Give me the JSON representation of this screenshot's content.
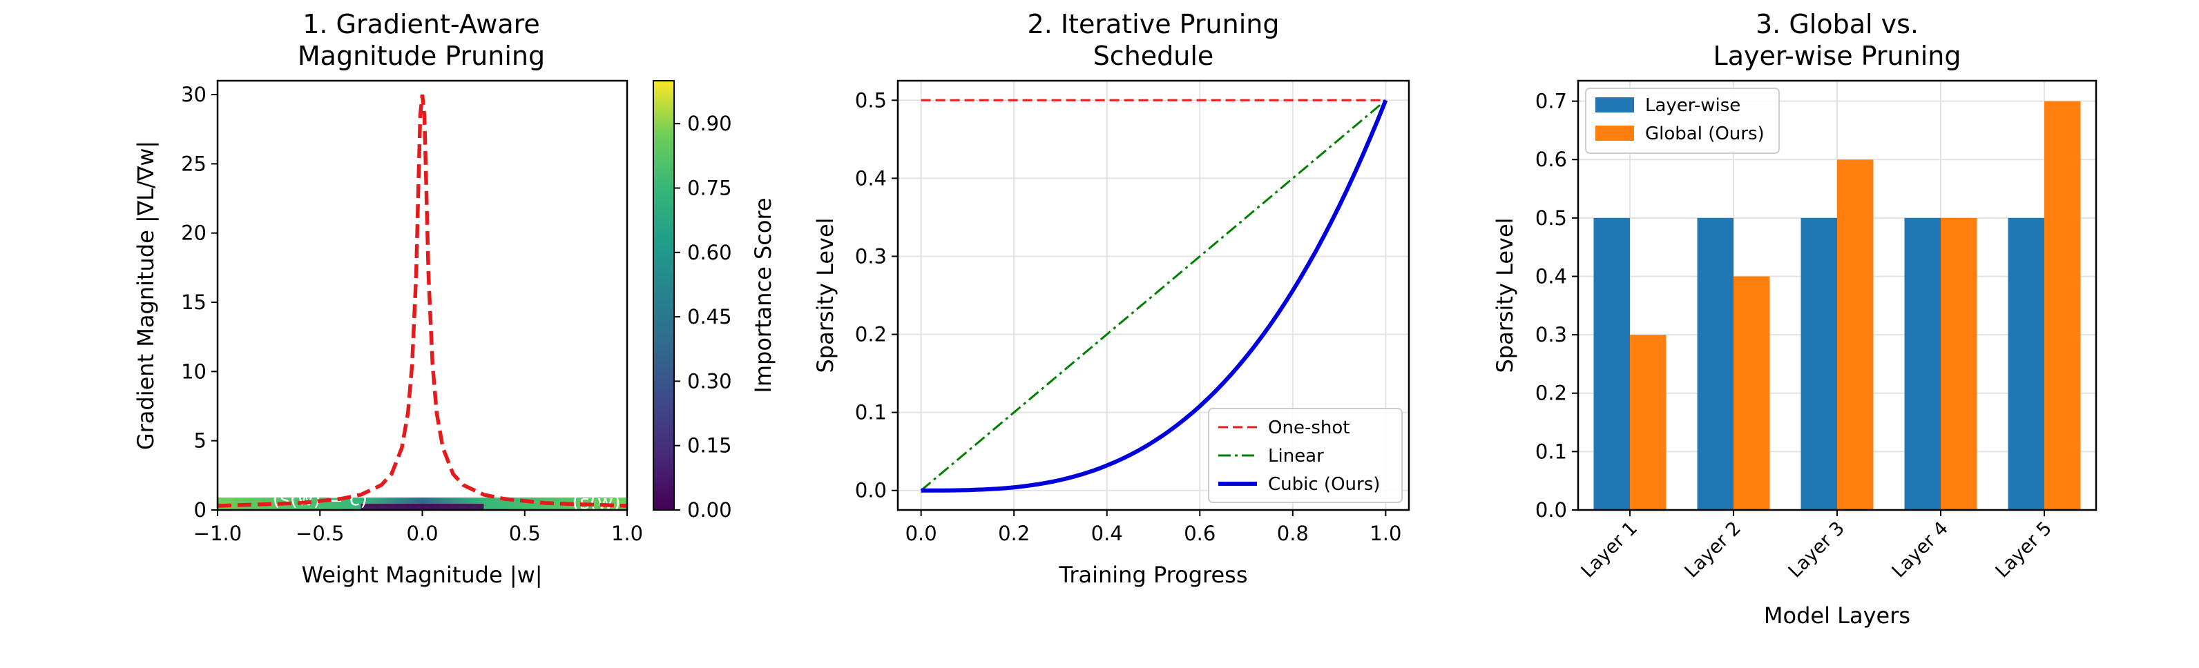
{
  "chart_data": [
    {
      "type": "line",
      "title": "1. Gradient-Aware\nMagnitude Pruning",
      "xlabel": "Weight Magnitude |w|",
      "ylabel": "Gradient Magnitude |∇L/∇w|",
      "xlim": [
        -1.0,
        1.0
      ],
      "ylim": [
        0,
        31
      ],
      "x_ticks": [
        "−1.0",
        "−0.5",
        "0.0",
        "0.5",
        "1.0"
      ],
      "y_ticks": [
        "0",
        "5",
        "10",
        "15",
        "20",
        "25",
        "30"
      ],
      "series": [
        {
          "style": "dashed",
          "color": "#e41a1c",
          "x": [
            -1.0,
            -0.8,
            -0.6,
            -0.4,
            -0.3,
            -0.2,
            -0.15,
            -0.1,
            -0.07,
            -0.05,
            -0.03,
            -0.02,
            -0.01,
            0.0,
            0.01,
            0.02,
            0.03,
            0.05,
            0.07,
            0.1,
            0.15,
            0.2,
            0.3,
            0.4,
            0.6,
            0.8,
            1.0
          ],
          "y": [
            0.3,
            0.4,
            0.5,
            0.8,
            1.1,
            1.8,
            2.6,
            4.5,
            7.0,
            10.5,
            17.0,
            23.0,
            28.5,
            30.0,
            28.5,
            23.0,
            17.0,
            10.5,
            7.0,
            4.5,
            2.6,
            1.8,
            1.1,
            0.8,
            0.5,
            0.4,
            0.3
          ]
        }
      ],
      "contour_labels": [
        "(s(w) = c)",
        "(s(w)"
      ],
      "colorbar": {
        "label": "Importance Score",
        "colormap": "viridis",
        "range": [
          0.0,
          1.0
        ],
        "ticks": [
          "0.00",
          "0.15",
          "0.30",
          "0.45",
          "0.60",
          "0.75",
          "0.90"
        ]
      }
    },
    {
      "type": "line",
      "title": "2. Iterative Pruning\nSchedule",
      "xlabel": "Training Progress",
      "ylabel": "Sparsity Level",
      "xlim": [
        -0.05,
        1.05
      ],
      "ylim": [
        -0.025,
        0.525
      ],
      "x_ticks": [
        "0.0",
        "0.2",
        "0.4",
        "0.6",
        "0.8",
        "1.0"
      ],
      "y_ticks": [
        "0.0",
        "0.1",
        "0.2",
        "0.3",
        "0.4",
        "0.5"
      ],
      "grid": true,
      "legend_position": "bottom-right",
      "series": [
        {
          "name": "One-shot",
          "style": "dashed",
          "color": "#e41a1c",
          "x": [
            0,
            1
          ],
          "y": [
            0.5,
            0.5
          ]
        },
        {
          "name": "Linear",
          "style": "dash-dot",
          "color": "#008000",
          "x": [
            0,
            1
          ],
          "y": [
            0,
            0.5
          ]
        },
        {
          "name": "Cubic (Ours)",
          "style": "solid",
          "color": "#0000dd",
          "x": [
            0,
            0.1,
            0.2,
            0.3,
            0.4,
            0.5,
            0.6,
            0.7,
            0.8,
            0.9,
            1.0
          ],
          "y": [
            0,
            0.0005,
            0.004,
            0.0135,
            0.032,
            0.0625,
            0.108,
            0.1715,
            0.256,
            0.3645,
            0.5
          ]
        }
      ]
    },
    {
      "type": "bar",
      "title": "3. Global vs.\nLayer-wise Pruning",
      "xlabel": "Model Layers",
      "ylabel": "Sparsity Level",
      "ylim": [
        0,
        0.735
      ],
      "y_ticks": [
        "0.0",
        "0.1",
        "0.2",
        "0.3",
        "0.4",
        "0.5",
        "0.6",
        "0.7"
      ],
      "grid": true,
      "legend_position": "top-left",
      "categories": [
        "Layer 1",
        "Layer 2",
        "Layer 3",
        "Layer 4",
        "Layer 5"
      ],
      "series": [
        {
          "name": "Layer-wise",
          "color": "#1f77b4",
          "values": [
            0.5,
            0.5,
            0.5,
            0.5,
            0.5
          ]
        },
        {
          "name": "Global (Ours)",
          "color": "#ff7f0e",
          "values": [
            0.3,
            0.4,
            0.6,
            0.5,
            0.7
          ]
        }
      ]
    }
  ]
}
